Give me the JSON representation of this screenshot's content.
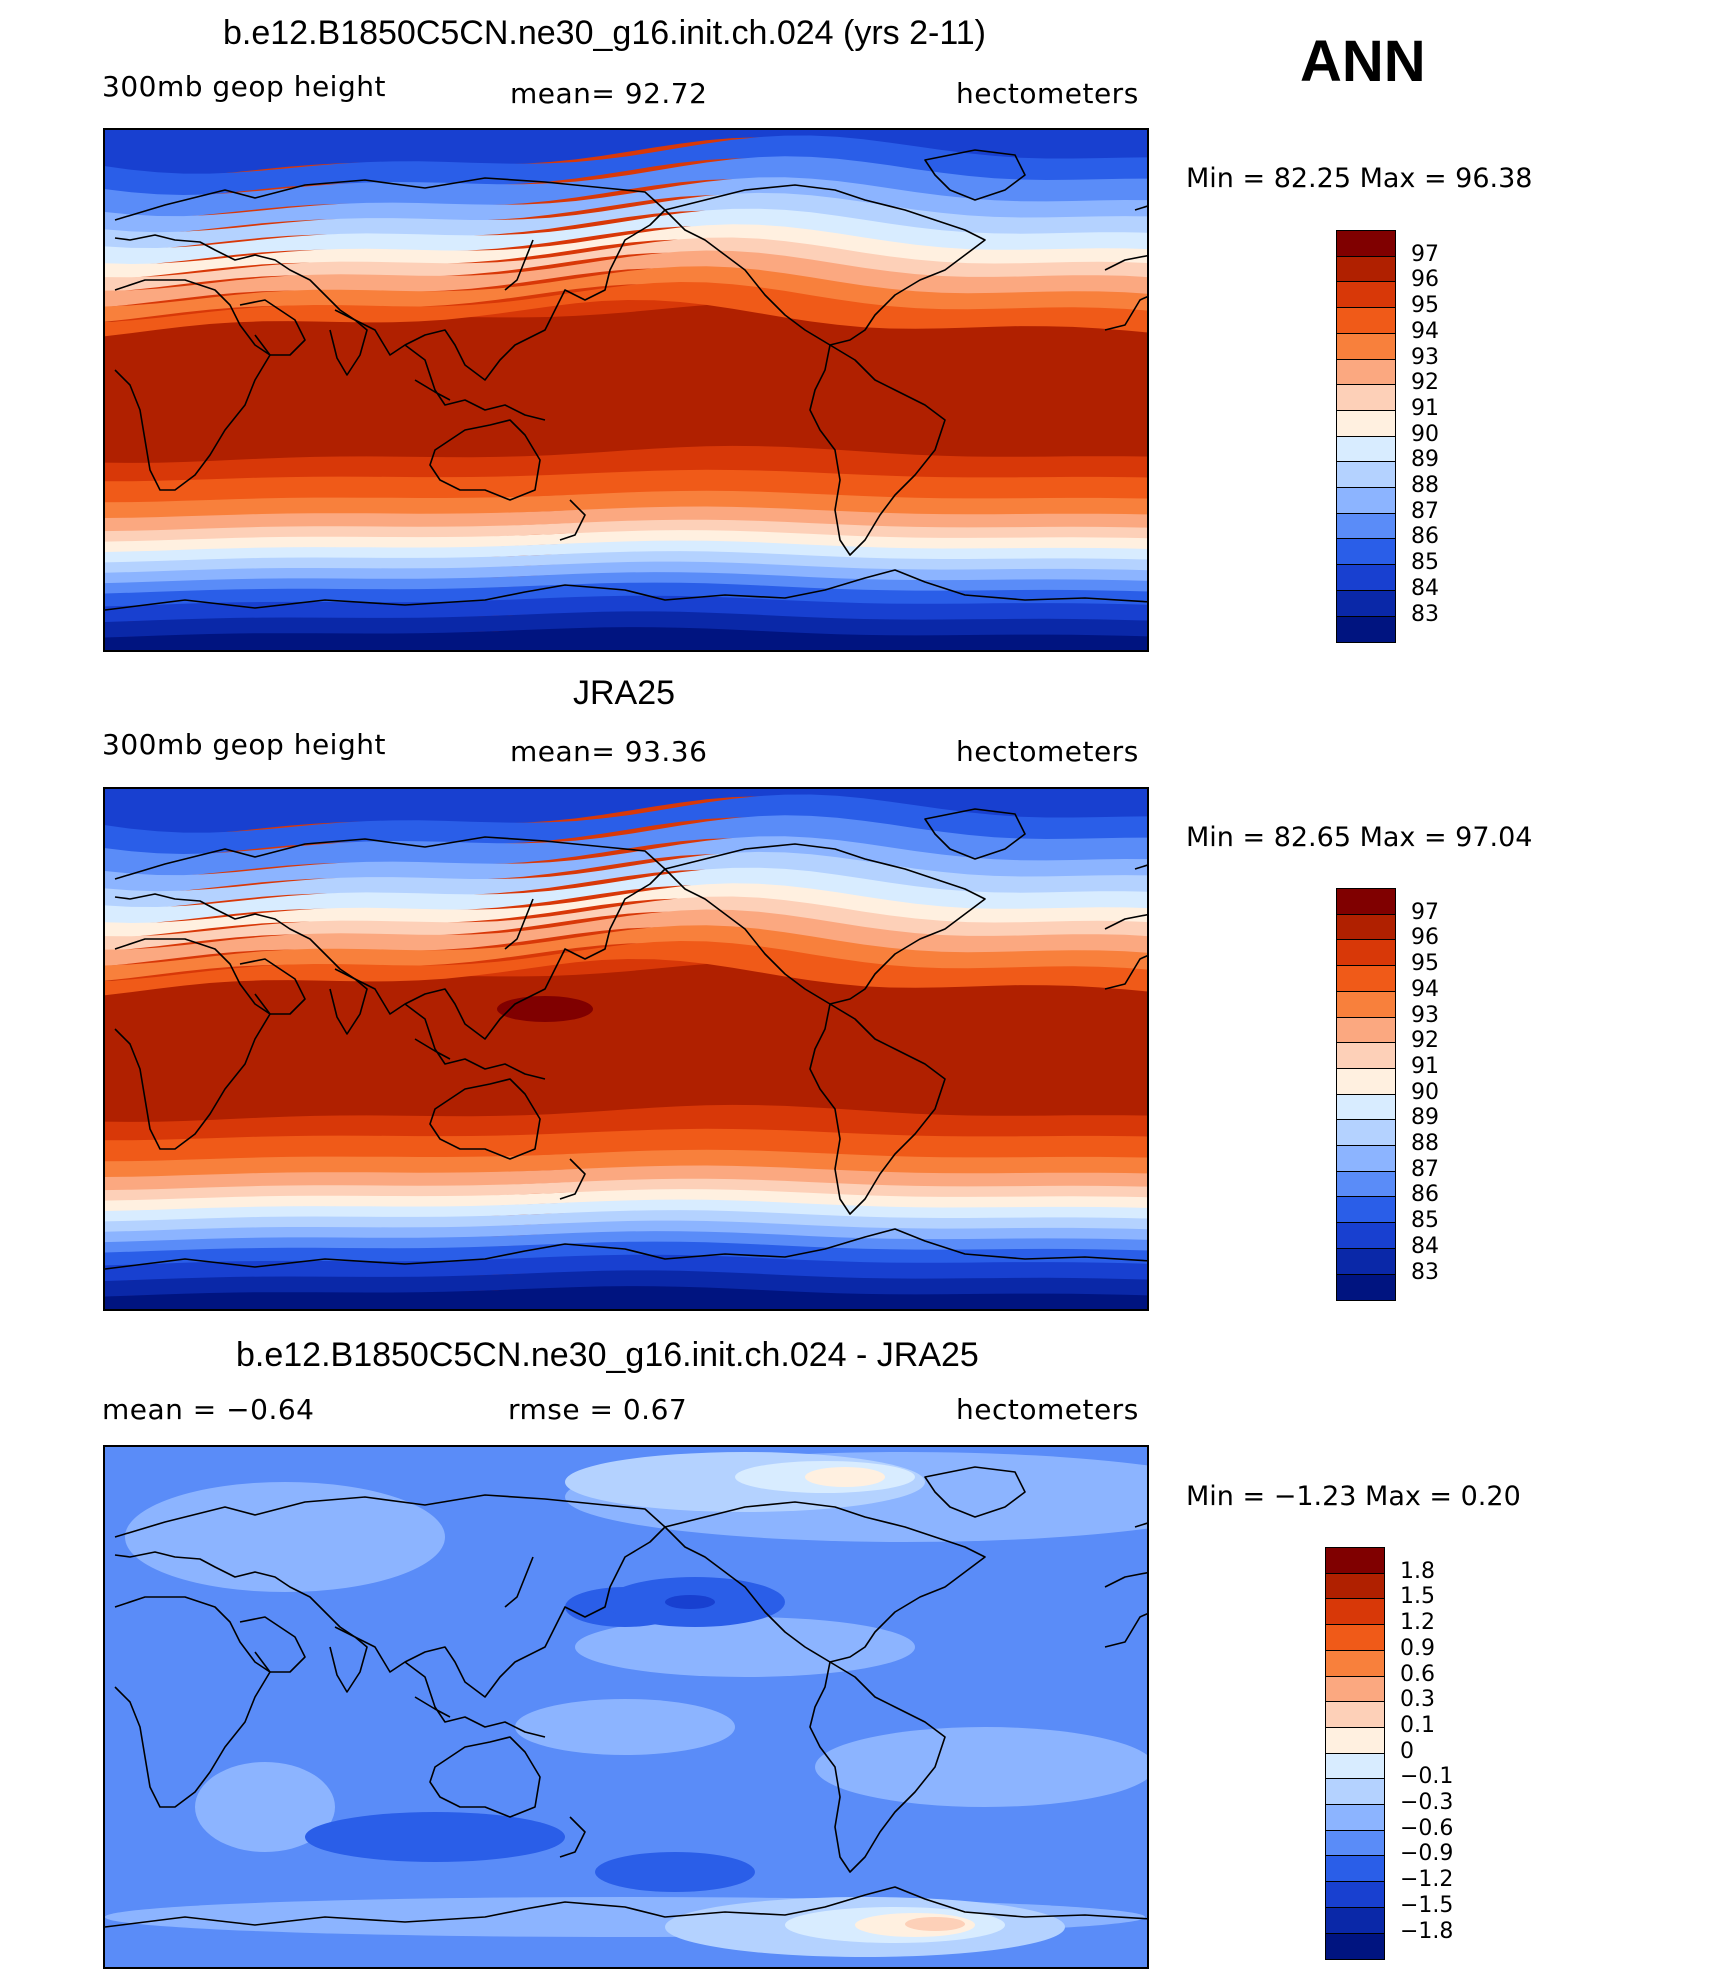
{
  "season": "ANN",
  "panels": [
    {
      "title": "b.e12.B1850C5CN.ne30_g16.init.ch.024 (yrs 2-11)",
      "left_label": "300mb  geop  height",
      "center_label": "mean=   92.72",
      "right_label": "hectometers",
      "minmax": "Min  =    82.25  Max  =    96.38",
      "levels": [
        "97",
        "96",
        "95",
        "94",
        "93",
        "92",
        "91",
        "90",
        "89",
        "88",
        "87",
        "86",
        "85",
        "84",
        "83"
      ]
    },
    {
      "title": "JRA25",
      "left_label": "300mb  geop  height",
      "center_label": "mean=   93.36",
      "right_label": "hectometers",
      "minmax": "Min  =    82.65  Max  =    97.04",
      "levels": [
        "97",
        "96",
        "95",
        "94",
        "93",
        "92",
        "91",
        "90",
        "89",
        "88",
        "87",
        "86",
        "85",
        "84",
        "83"
      ]
    },
    {
      "title": "b.e12.B1850C5CN.ne30_g16.init.ch.024 - JRA25",
      "left_label": "mean  =    −0.64",
      "center_label": "rmse  =     0.67",
      "right_label": "hectometers",
      "minmax": "Min  =    −1.23  Max  =     0.20",
      "levels": [
        "1.8",
        "1.5",
        "1.2",
        "0.9",
        "0.6",
        "0.3",
        "0.1",
        "0",
        "−0.1",
        "−0.3",
        "−0.6",
        "−0.9",
        "−1.2",
        "−1.5",
        "−1.8"
      ]
    }
  ],
  "colors": {
    "palette": [
      "#800000",
      "#b02000",
      "#d83808",
      "#f05a18",
      "#f8803c",
      "#fba880",
      "#fdd0b8",
      "#fff0e0",
      "#d8ecff",
      "#b4d2ff",
      "#8cb4ff",
      "#5a8cf8",
      "#2a5ee8",
      "#1840d0",
      "#0a28a8",
      "#001480"
    ]
  }
}
